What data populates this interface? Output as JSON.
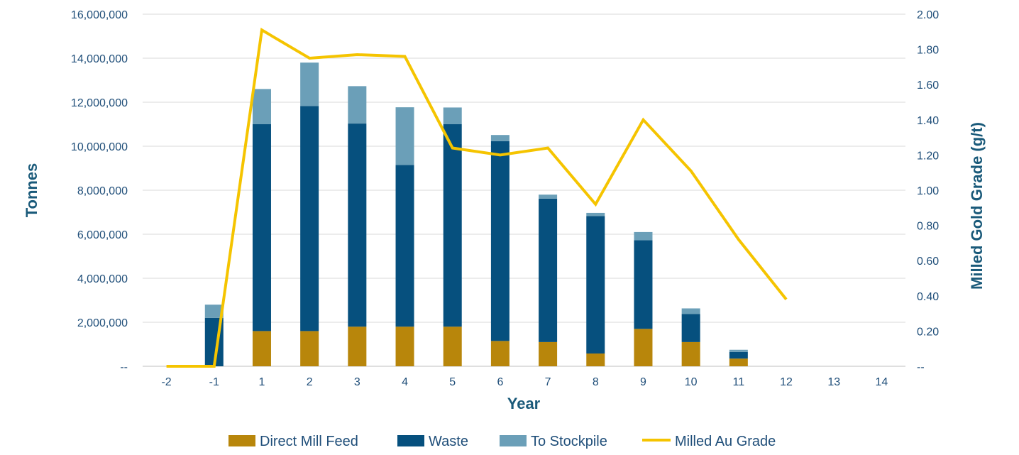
{
  "chart_data": {
    "type": "bar",
    "stacked": true,
    "categories": [
      "-2",
      "-1",
      "1",
      "2",
      "3",
      "4",
      "5",
      "6",
      "7",
      "8",
      "9",
      "10",
      "11",
      "12",
      "13",
      "14"
    ],
    "series": [
      {
        "name": "Direct Mill Feed",
        "type": "bar",
        "axis": "left",
        "color": "#b8860b",
        "values": [
          0,
          0,
          1600000,
          1600000,
          1800000,
          1800000,
          1800000,
          1150000,
          1100000,
          580000,
          1700000,
          1100000,
          350000,
          0,
          0,
          0
        ]
      },
      {
        "name": "Waste",
        "type": "bar",
        "axis": "left",
        "color": "#06507e",
        "values": [
          0,
          2200000,
          9400000,
          10230000,
          9230000,
          7350000,
          9200000,
          9080000,
          6520000,
          6250000,
          4030000,
          1280000,
          300000,
          0,
          0,
          0
        ]
      },
      {
        "name": "To Stockpile",
        "type": "bar",
        "axis": "left",
        "color": "#6b9fb8",
        "values": [
          0,
          600000,
          1600000,
          1970000,
          1700000,
          2620000,
          760000,
          280000,
          180000,
          140000,
          370000,
          250000,
          100000,
          0,
          0,
          0
        ]
      },
      {
        "name": "Milled Au Grade",
        "type": "line",
        "axis": "right",
        "color": "#f5c400",
        "values": [
          0,
          0,
          1.91,
          1.75,
          1.77,
          1.76,
          1.24,
          1.2,
          1.24,
          0.92,
          1.4,
          1.11,
          0.72,
          0.38,
          null,
          null
        ]
      }
    ],
    "xlabel": "Year",
    "ylabel": "Tonnes",
    "y2label": "Milled Gold Grade (g/t)",
    "ylim": [
      0,
      16000000
    ],
    "y2lim": [
      0,
      2.0
    ],
    "yticks": [
      "--",
      "2,000,000",
      "4,000,000",
      "6,000,000",
      "8,000,000",
      "10,000,000",
      "12,000,000",
      "14,000,000",
      "16,000,000"
    ],
    "y2ticks": [
      "--",
      "0.20",
      "0.40",
      "0.60",
      "0.80",
      "1.00",
      "1.20",
      "1.40",
      "1.60",
      "1.80",
      "2.00"
    ],
    "grid": true,
    "legend_position": "bottom"
  }
}
